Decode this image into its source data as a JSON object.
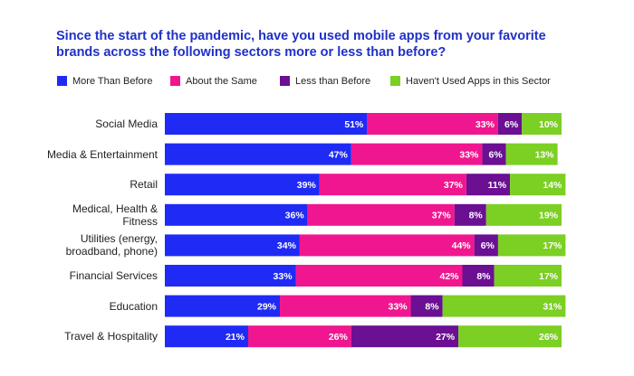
{
  "chart_data": {
    "type": "stacked-bar-horizontal",
    "title": "Since the start of the pandemic, have you used mobile apps from your favorite brands across the following sectors more or less than before?",
    "categories": [
      "Social Media",
      "Media & Entertainment",
      "Retail",
      "Medical, Health & Fitness",
      "Utilities (energy, broadband, phone)",
      "Financial Services",
      "Education",
      "Travel & Hospitality"
    ],
    "xlim": [
      0,
      100
    ],
    "series": [
      {
        "name": "More Than Before",
        "color": "#1f2bf5",
        "values": [
          51,
          47,
          39,
          36,
          34,
          33,
          29,
          21
        ],
        "value_labels": [
          "51%",
          "47%",
          "39%",
          "36%",
          "34%",
          "33%",
          "29%",
          "21%"
        ]
      },
      {
        "name": "About the Same",
        "color": "#f0168f",
        "values": [
          33,
          33,
          37,
          37,
          44,
          42,
          33,
          26
        ],
        "value_labels": [
          "33%",
          "33%",
          "37%",
          "37%",
          "44%",
          "42%",
          "33%",
          "26%"
        ]
      },
      {
        "name": "Less than Before",
        "color": "#6b0f93",
        "values": [
          6,
          6,
          11,
          8,
          6,
          8,
          8,
          27
        ],
        "value_labels": [
          "6%",
          "6%",
          "11%",
          "8%",
          "6%",
          "8%",
          "8%",
          "27%"
        ]
      },
      {
        "name": "Haven't Used Apps in this Sector",
        "color": "#7ccf23",
        "values": [
          10,
          13,
          14,
          19,
          17,
          17,
          31,
          26
        ],
        "value_labels": [
          "10%",
          "13%",
          "14%",
          "19%",
          "17%",
          "17%",
          "31%",
          "26%"
        ]
      }
    ]
  }
}
